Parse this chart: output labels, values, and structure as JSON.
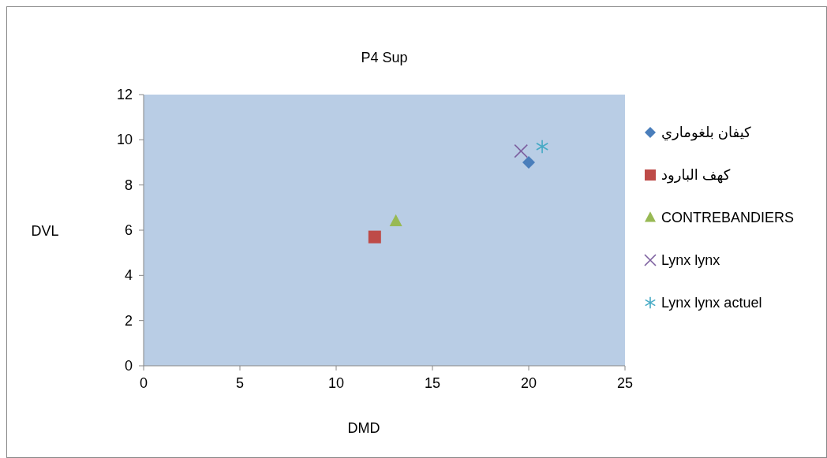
{
  "chart_data": {
    "type": "scatter",
    "title": "P4 Sup",
    "xlabel": "DMD",
    "ylabel": "DVL",
    "xlim": [
      0,
      25
    ],
    "xticks": [
      0,
      5,
      10,
      15,
      20,
      25
    ],
    "ylim": [
      0,
      12
    ],
    "yticks": [
      0,
      2,
      4,
      6,
      8,
      10,
      12
    ],
    "grid": false,
    "legend": "right",
    "series": [
      {
        "name": "كيفان بلغوماري",
        "color": "#4a7ebb",
        "marker": "diamond",
        "x": [
          20
        ],
        "values": [
          9
        ]
      },
      {
        "name": "كهف البارود",
        "color": "#be4b48",
        "marker": "square",
        "x": [
          12
        ],
        "values": [
          5.7
        ]
      },
      {
        "name": "CONTREBANDIERS",
        "color": "#98b954",
        "marker": "triangle",
        "x": [
          13.1
        ],
        "values": [
          6.4
        ]
      },
      {
        "name": "Lynx lynx",
        "color": "#7d60a0",
        "marker": "cross",
        "x": [
          19.6
        ],
        "values": [
          9.5
        ]
      },
      {
        "name": "Lynx lynx actuel",
        "color": "#46aac5",
        "x": [
          20.7
        ],
        "values": [
          9.7
        ]
      }
    ]
  }
}
